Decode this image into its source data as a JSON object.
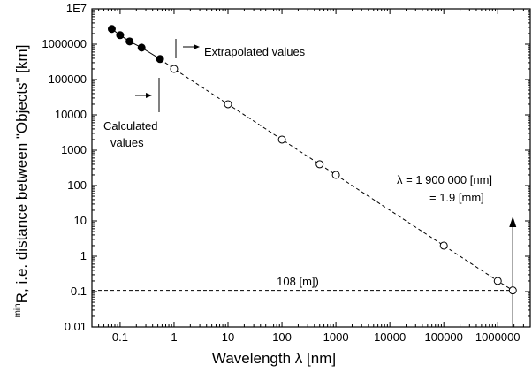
{
  "chart_data": {
    "type": "scatter",
    "xscale": "log",
    "yscale": "log",
    "xlim": [
      0.03,
      4000000
    ],
    "ylim": [
      0.01,
      10000000
    ],
    "grid": false,
    "xlabel": "Wavelength λ  [nm]",
    "ylabel_sup": "min",
    "ylabel": "R, i.e. distance between \"Objects\"  [km]",
    "xticks": [
      {
        "v": 0.1,
        "label": "0.1"
      },
      {
        "v": 1,
        "label": "1"
      },
      {
        "v": 10,
        "label": "10"
      },
      {
        "v": 100,
        "label": "100"
      },
      {
        "v": 1000,
        "label": "1000"
      },
      {
        "v": 10000,
        "label": "10000"
      },
      {
        "v": 100000,
        "label": "100000"
      },
      {
        "v": 1000000,
        "label": "1000000"
      }
    ],
    "yticks": [
      {
        "v": 0.01,
        "label": "0.01"
      },
      {
        "v": 0.1,
        "label": "0.1"
      },
      {
        "v": 1,
        "label": "1"
      },
      {
        "v": 10,
        "label": "10"
      },
      {
        "v": 100,
        "label": "100"
      },
      {
        "v": 1000,
        "label": "1000"
      },
      {
        "v": 10000,
        "label": "10000"
      },
      {
        "v": 100000,
        "label": "100000"
      },
      {
        "v": 1000000,
        "label": "1000000"
      },
      {
        "v": 10000000,
        "label": "1E7"
      }
    ],
    "series": [
      {
        "name": "Calculated values",
        "marker": "filled-circle",
        "x": [
          0.07,
          0.1,
          0.15,
          0.25,
          0.55
        ],
        "y": [
          2700000,
          1800000,
          1200000,
          800000,
          380000
        ]
      },
      {
        "name": "Extrapolated values",
        "marker": "open-circle",
        "line": "dashed",
        "x": [
          1,
          10,
          100,
          500,
          1000,
          100000,
          1000000,
          1900000
        ],
        "y": [
          200000,
          20000,
          2000,
          400,
          200,
          2,
          0.2,
          0.108
        ]
      }
    ],
    "annotations": {
      "extrapolated": "Extrapolated values",
      "calculated_line1": "Calculated",
      "calculated_line2": "values",
      "lambda_line1": "λ = 1 900 000 [nm]",
      "lambda_line2": "= 1.9 [mm]",
      "distance": "108 [m])",
      "distance_y": 0.108
    }
  }
}
